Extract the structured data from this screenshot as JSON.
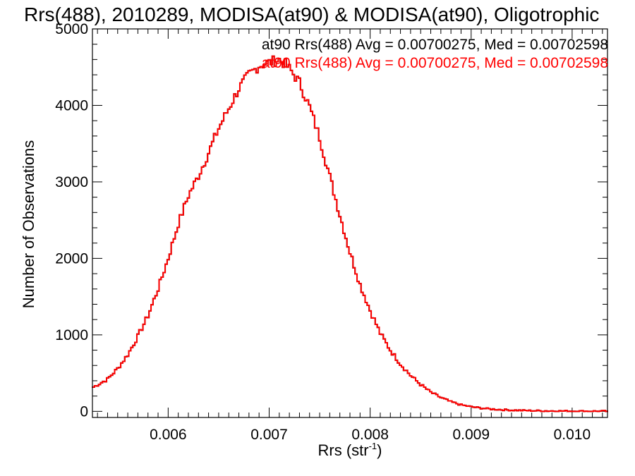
{
  "chart_data": {
    "type": "line",
    "title": "Rrs(488), 2010289, MODISA(at90) & MODISA(at90), Oligotrophic",
    "xlabel": "Rrs (str",
    "xlabel_superscript": "-1",
    "xlabel_suffix": ")",
    "ylabel": "Number of Observations",
    "xlim": [
      0.00525,
      0.01035
    ],
    "ylim": [
      -80,
      5000
    ],
    "x_ticks": [
      0.006,
      0.007,
      0.008,
      0.009,
      0.01
    ],
    "x_tick_labels": [
      "0.006",
      "0.007",
      "0.008",
      "0.009",
      "0.010"
    ],
    "y_ticks": [
      0,
      1000,
      2000,
      3000,
      4000,
      5000
    ],
    "y_tick_labels": [
      "0",
      "1000",
      "2000",
      "3000",
      "4000",
      "5000"
    ],
    "grid": false,
    "legend_placement": "top-right",
    "legend": [
      {
        "text": "at90 Rrs(488) Avg = 0.00700275, Med = 0.00702598",
        "color": "#000000"
      },
      {
        "text": "at90 Rrs(488) Avg = 0.00700275, Med = 0.00702598",
        "color": "#ff0000"
      }
    ],
    "series": [
      {
        "color_primary": "#ff0000",
        "color_under": "#000000",
        "step": true,
        "x": [
          0.00525,
          0.0054,
          0.0055,
          0.0056,
          0.0057,
          0.0058,
          0.0059,
          0.006,
          0.0061,
          0.0062,
          0.0063,
          0.0064,
          0.0065,
          0.0066,
          0.0067,
          0.0068,
          0.0069,
          0.007,
          0.0071,
          0.00715,
          0.0072,
          0.0073,
          0.0074,
          0.0075,
          0.0076,
          0.0077,
          0.0078,
          0.0079,
          0.008,
          0.0081,
          0.0082,
          0.0083,
          0.0084,
          0.0085,
          0.0086,
          0.0087,
          0.0088,
          0.0089,
          0.009,
          0.0091,
          0.0092,
          0.0093,
          0.0094,
          0.0095,
          0.0096,
          0.0097,
          0.0098,
          0.0099,
          0.01,
          0.0101,
          0.0102,
          0.01035
        ],
        "y": [
          310,
          420,
          560,
          740,
          980,
          1250,
          1600,
          2000,
          2450,
          2820,
          3080,
          3380,
          3700,
          3960,
          4220,
          4400,
          4520,
          4560,
          4600,
          4550,
          4480,
          4300,
          3980,
          3580,
          3070,
          2570,
          2080,
          1660,
          1320,
          1020,
          800,
          620,
          470,
          350,
          250,
          180,
          125,
          85,
          60,
          42,
          30,
          22,
          16,
          12,
          9,
          7,
          5,
          4,
          3,
          2,
          2,
          2
        ]
      }
    ]
  }
}
